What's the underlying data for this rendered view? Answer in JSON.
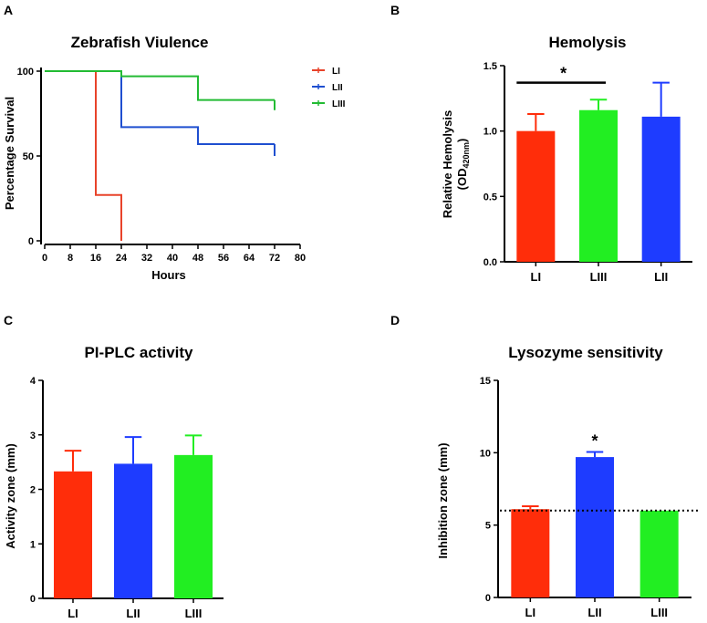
{
  "chart_data": [
    {
      "panel": "A",
      "type": "line",
      "title": "Zebrafish Viulence",
      "xlabel": "Hours",
      "ylabel": "Percentage Survival",
      "xlim": [
        0,
        80
      ],
      "ylim": [
        0,
        100
      ],
      "x_ticks": [
        0,
        8,
        16,
        24,
        32,
        40,
        48,
        56,
        64,
        72,
        80
      ],
      "y_ticks": [
        0,
        50,
        100
      ],
      "legend_position": "top-right",
      "series": [
        {
          "name": "LI",
          "color": "#e8432a",
          "steps": [
            [
              0,
              100
            ],
            [
              16,
              100
            ],
            [
              16,
              27
            ],
            [
              24,
              27
            ],
            [
              24,
              0
            ]
          ]
        },
        {
          "name": "LII",
          "color": "#1f4fd0",
          "steps": [
            [
              0,
              100
            ],
            [
              24,
              100
            ],
            [
              24,
              67
            ],
            [
              48,
              67
            ],
            [
              48,
              57
            ],
            [
              72,
              57
            ]
          ],
          "censor_end": 50
        },
        {
          "name": "LIII",
          "color": "#22bb33",
          "steps": [
            [
              0,
              100
            ],
            [
              24,
              100
            ],
            [
              24,
              97
            ],
            [
              48,
              97
            ],
            [
              48,
              83
            ],
            [
              72,
              83
            ]
          ],
          "censor_end": 77
        }
      ]
    },
    {
      "panel": "B",
      "type": "bar",
      "title": "Hemolysis",
      "ylabel": "Relative Hemolysis",
      "ylabel_line2": "(OD",
      "ylabel_sub": "420nm",
      "ylabel_close": ")",
      "ylim": [
        0,
        1.5
      ],
      "y_ticks": [
        "0.0",
        "0.5",
        "1.0",
        "1.5"
      ],
      "categories": [
        "LI",
        "LIII",
        "LII"
      ],
      "values": [
        1.0,
        1.16,
        1.11
      ],
      "errors": [
        0.13,
        0.08,
        0.26
      ],
      "colors": [
        "#ff2d0a",
        "#22ee22",
        "#1e3cff"
      ],
      "significance": {
        "from": 0,
        "to": 1,
        "label": "*",
        "y": 1.37
      }
    },
    {
      "panel": "C",
      "type": "bar",
      "title": "PI-PLC activity",
      "ylabel": "Activity zone (mm)",
      "ylim": [
        0,
        4
      ],
      "y_ticks": [
        "0",
        "1",
        "2",
        "3",
        "4"
      ],
      "categories": [
        "LI",
        "LII",
        "LIII"
      ],
      "values": [
        2.33,
        2.47,
        2.63
      ],
      "errors": [
        0.38,
        0.49,
        0.36
      ],
      "colors": [
        "#ff2d0a",
        "#1e3cff",
        "#22ee22"
      ]
    },
    {
      "panel": "D",
      "type": "bar",
      "title": "Lysozyme sensitivity",
      "ylabel": "Inhibition zone (mm)",
      "ylim": [
        0,
        15
      ],
      "y_ticks": [
        "0",
        "5",
        "10",
        "15"
      ],
      "categories": [
        "LI",
        "LII",
        "LIII"
      ],
      "values": [
        6.1,
        9.7,
        6.0
      ],
      "errors": [
        0.2,
        0.35,
        0.0
      ],
      "colors": [
        "#ff2d0a",
        "#1e3cff",
        "#22ee22"
      ],
      "reference_line": 6.0,
      "stars": [
        {
          "index": 1,
          "label": "*"
        }
      ]
    }
  ]
}
